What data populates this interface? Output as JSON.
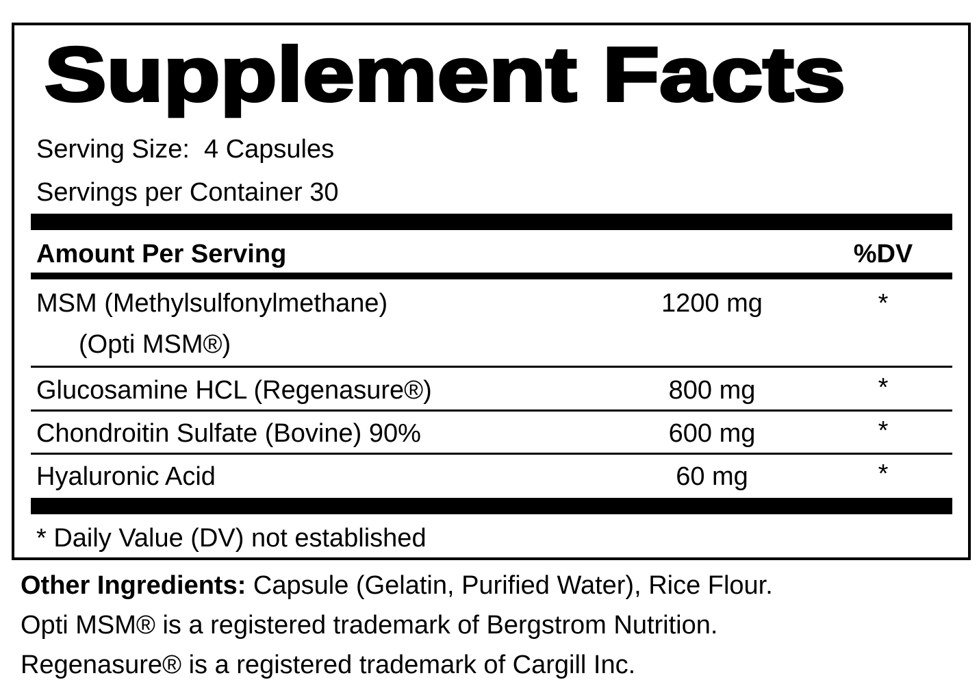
{
  "title": "Supplement Facts",
  "serving_size": "Serving Size:  4 Capsules",
  "servings_per_container": "Servings per Container 30",
  "table": {
    "header": {
      "amount": "Amount Per Serving",
      "dv": "%DV"
    },
    "rows": [
      {
        "name": "MSM (Methylsulfonylmethane)",
        "subname": "(Opti MSM®)",
        "amount": "1200 mg",
        "dv": "*"
      },
      {
        "name": "Glucosamine HCL (Regenasure®)",
        "amount": "800 mg",
        "dv": "*"
      },
      {
        "name": "Chondroitin Sulfate (Bovine) 90%",
        "amount": "600 mg",
        "dv": "*"
      },
      {
        "name": "Hyaluronic Acid",
        "amount": "60 mg",
        "dv": "*"
      }
    ]
  },
  "footnote": "* Daily Value (DV) not established",
  "other_ingredients": {
    "label": "Other Ingredients:",
    "text": " Capsule (Gelatin, Purified Water), Rice Flour.",
    "notes": [
      "Opti MSM® is a registered trademark of Bergstrom Nutrition.",
      "Regenasure® is a registered trademark of Cargill Inc."
    ]
  }
}
